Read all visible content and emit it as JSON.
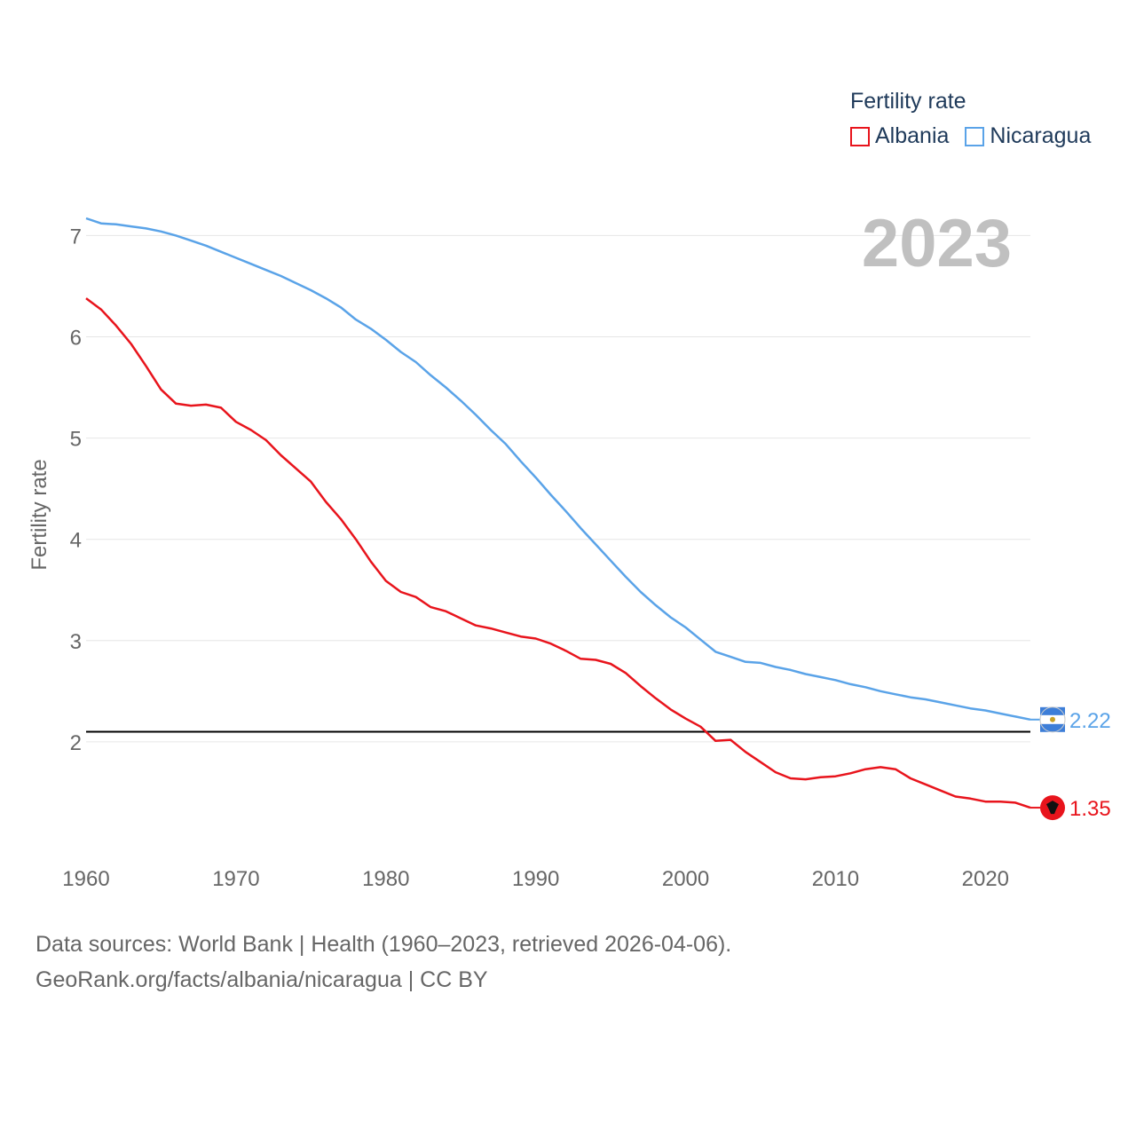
{
  "legend": {
    "title": "Fertility rate",
    "items": [
      {
        "label": "Albania",
        "color": "#e8141c"
      },
      {
        "label": "Nicaragua",
        "color": "#5aa3e8"
      }
    ]
  },
  "year_overlay": "2023",
  "source": {
    "line1": "Data sources: World Bank | Health (1960–2023, retrieved 2026-04-06).",
    "line2": "GeoRank.org/facts/albania/nicaragua | CC BY"
  },
  "chart_data": {
    "type": "line",
    "title": "",
    "xlabel": "",
    "ylabel": "Fertility rate",
    "xlim": [
      1960,
      2023
    ],
    "ylim": [
      1,
      7.5
    ],
    "x_ticks": [
      1960,
      1970,
      1980,
      1990,
      2000,
      2010,
      2020
    ],
    "y_ticks": [
      2,
      3,
      4,
      5,
      6,
      7
    ],
    "grid": true,
    "reference_line": {
      "y": 2.1,
      "color": "#000000"
    },
    "x": [
      1960,
      1961,
      1962,
      1963,
      1964,
      1965,
      1966,
      1967,
      1968,
      1969,
      1970,
      1971,
      1972,
      1973,
      1974,
      1975,
      1976,
      1977,
      1978,
      1979,
      1980,
      1981,
      1982,
      1983,
      1984,
      1985,
      1986,
      1987,
      1988,
      1989,
      1990,
      1991,
      1992,
      1993,
      1994,
      1995,
      1996,
      1997,
      1998,
      1999,
      2000,
      2001,
      2002,
      2003,
      2004,
      2005,
      2006,
      2007,
      2008,
      2009,
      2010,
      2011,
      2012,
      2013,
      2014,
      2015,
      2016,
      2017,
      2018,
      2019,
      2020,
      2021,
      2022,
      2023
    ],
    "series": [
      {
        "name": "Albania",
        "color": "#e8141c",
        "end_label": "1.35",
        "values": [
          6.38,
          6.27,
          6.11,
          5.93,
          5.71,
          5.48,
          5.34,
          5.32,
          5.33,
          5.3,
          5.16,
          5.08,
          4.98,
          4.83,
          4.7,
          4.57,
          4.37,
          4.2,
          4.0,
          3.78,
          3.59,
          3.48,
          3.43,
          3.33,
          3.29,
          3.22,
          3.15,
          3.12,
          3.08,
          3.04,
          3.02,
          2.97,
          2.9,
          2.82,
          2.81,
          2.77,
          2.68,
          2.55,
          2.43,
          2.32,
          2.23,
          2.15,
          2.01,
          2.02,
          1.9,
          1.8,
          1.7,
          1.64,
          1.63,
          1.65,
          1.66,
          1.69,
          1.73,
          1.75,
          1.73,
          1.64,
          1.58,
          1.52,
          1.46,
          1.44,
          1.41,
          1.41,
          1.4,
          1.35
        ]
      },
      {
        "name": "Nicaragua",
        "color": "#5aa3e8",
        "end_label": "2.22",
        "values": [
          7.17,
          7.12,
          7.11,
          7.09,
          7.07,
          7.04,
          7.0,
          6.95,
          6.9,
          6.84,
          6.78,
          6.72,
          6.66,
          6.6,
          6.53,
          6.46,
          6.38,
          6.29,
          6.17,
          6.08,
          5.97,
          5.85,
          5.75,
          5.62,
          5.5,
          5.37,
          5.23,
          5.08,
          4.94,
          4.77,
          4.61,
          4.44,
          4.28,
          4.11,
          3.95,
          3.79,
          3.63,
          3.48,
          3.35,
          3.23,
          3.13,
          3.01,
          2.89,
          2.84,
          2.79,
          2.78,
          2.74,
          2.71,
          2.67,
          2.64,
          2.61,
          2.57,
          2.54,
          2.5,
          2.47,
          2.44,
          2.42,
          2.39,
          2.36,
          2.33,
          2.31,
          2.28,
          2.25,
          2.22
        ]
      }
    ]
  }
}
